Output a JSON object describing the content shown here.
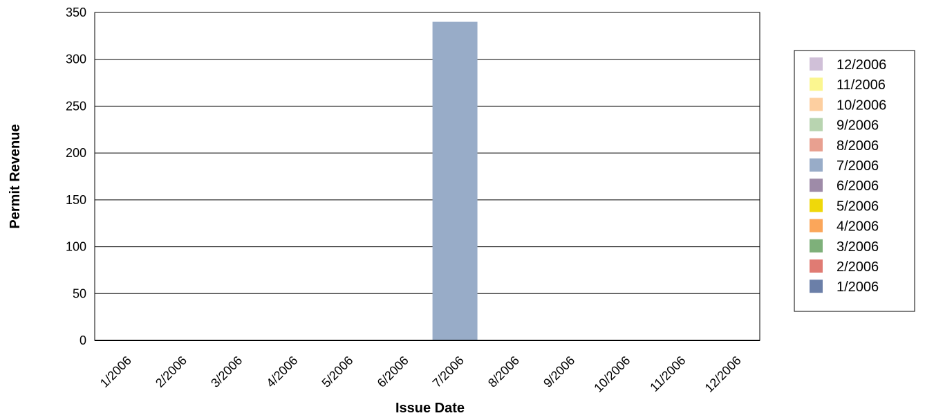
{
  "chart_data": {
    "type": "bar",
    "title": "",
    "xlabel": "Issue Date",
    "ylabel": "Permit Revenue",
    "categories": [
      "1/2006",
      "2/2006",
      "3/2006",
      "4/2006",
      "5/2006",
      "6/2006",
      "7/2006",
      "8/2006",
      "9/2006",
      "10/2006",
      "11/2006",
      "12/2006"
    ],
    "values": [
      0,
      0,
      0,
      0,
      0,
      0,
      340,
      0,
      0,
      0,
      0,
      0
    ],
    "colors": [
      "#6B7FA8",
      "#E07B73",
      "#7EB07A",
      "#FBA65A",
      "#EFD80A",
      "#9E8BA8",
      "#98ACC8",
      "#E8A090",
      "#B8D4B0",
      "#FDCFA0",
      "#FBF690",
      "#D0C0D8"
    ],
    "ylim": [
      0,
      350
    ],
    "yticks": [
      0,
      50,
      100,
      150,
      200,
      250,
      300,
      350
    ],
    "grid": true,
    "legend": {
      "placement": "right",
      "order": "reversed",
      "entries": [
        "12/2006",
        "11/2006",
        "10/2006",
        "9/2006",
        "8/2006",
        "7/2006",
        "6/2006",
        "5/2006",
        "4/2006",
        "3/2006",
        "2/2006",
        "1/2006"
      ]
    }
  }
}
